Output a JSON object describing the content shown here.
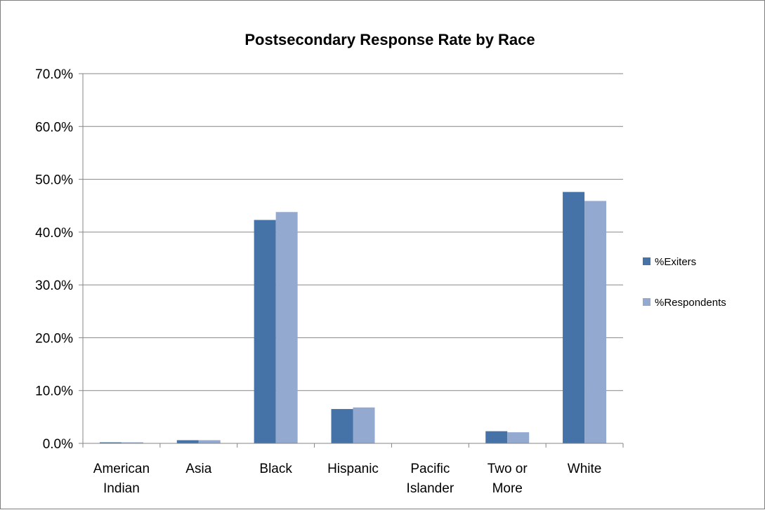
{
  "chart_data": {
    "type": "bar",
    "title": "Postsecondary Response Rate by Race",
    "xlabel": "",
    "ylabel": "",
    "categories": [
      [
        "American",
        "Indian"
      ],
      [
        "Asia"
      ],
      [
        "Black"
      ],
      [
        "Hispanic"
      ],
      [
        "Pacific",
        "Islander"
      ],
      [
        "Two or",
        "More"
      ],
      [
        "White"
      ]
    ],
    "series": [
      {
        "name": "%Exiters",
        "color": "#4572a7",
        "values": [
          0.2,
          0.6,
          42.3,
          6.5,
          0.0,
          2.3,
          47.6
        ]
      },
      {
        "name": "%Respondents",
        "color": "#93a9cf",
        "values": [
          0.2,
          0.6,
          43.8,
          6.8,
          0.0,
          2.1,
          45.9
        ]
      }
    ],
    "ylim": [
      0,
      70
    ],
    "yticks": [
      0,
      10,
      20,
      30,
      40,
      50,
      60,
      70
    ],
    "ytick_labels": [
      "0.0%",
      "10.0%",
      "20.0%",
      "30.0%",
      "40.0%",
      "50.0%",
      "60.0%",
      "70.0%"
    ],
    "grid": true,
    "legend_position": "right"
  }
}
